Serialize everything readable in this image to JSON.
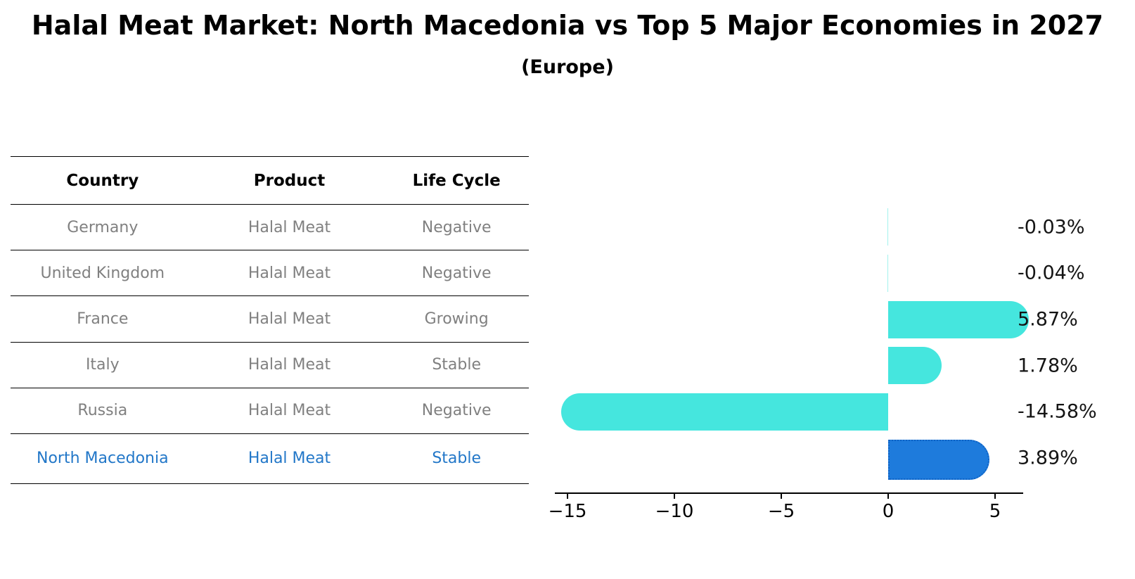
{
  "title": "Halal Meat Market: North Macedonia vs Top 5 Major Economies in 2027",
  "subtitle": "(Europe)",
  "table": {
    "headers": [
      "Country",
      "Product",
      "Life Cycle"
    ],
    "rows": [
      {
        "country": "Germany",
        "product": "Halal Meat",
        "life_cycle": "Negative",
        "highlight": false
      },
      {
        "country": "United Kingdom",
        "product": "Halal Meat",
        "life_cycle": "Negative",
        "highlight": false
      },
      {
        "country": "France",
        "product": "Halal Meat",
        "life_cycle": "Growing",
        "highlight": false
      },
      {
        "country": "Italy",
        "product": "Halal Meat",
        "life_cycle": "Stable",
        "highlight": false
      },
      {
        "country": "Russia",
        "product": "Halal Meat",
        "life_cycle": "Negative",
        "highlight": false
      },
      {
        "country": "North Macedonia",
        "product": "Halal Meat",
        "life_cycle": "Stable",
        "highlight": true
      }
    ]
  },
  "chart_data": {
    "type": "bar",
    "orientation": "horizontal",
    "title": "Halal Meat Market: North Macedonia vs Top 5 Major Economies in 2027",
    "subtitle": "(Europe)",
    "categories": [
      "Germany",
      "United Kingdom",
      "France",
      "Italy",
      "Russia",
      "North Macedonia"
    ],
    "values": [
      -0.03,
      -0.04,
      5.87,
      1.78,
      -14.58,
      3.89
    ],
    "value_labels": [
      "-0.03%",
      "-0.04%",
      "5.87%",
      "1.78%",
      "-14.58%",
      "3.89%"
    ],
    "unit": "%",
    "highlight_category": "North Macedonia",
    "xlim": [
      -15.6,
      6.3
    ],
    "xticks": {
      "values": [
        -15,
        -10,
        -5,
        0,
        5
      ],
      "labels": [
        "−15",
        "−10",
        "−5",
        "0",
        "5"
      ]
    },
    "grid": false,
    "legend": false,
    "bar_color": "#45E6DE",
    "highlight_bar_color": "#1E7BDC",
    "highlight_border_color": "#0F62C4",
    "axis_color": "#000000"
  }
}
